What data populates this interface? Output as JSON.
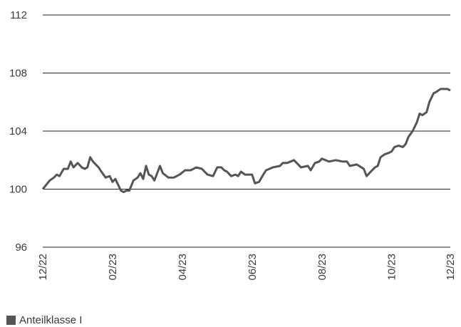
{
  "chart_data": {
    "type": "line",
    "title": "",
    "xlabel": "",
    "ylabel": "",
    "ylim": [
      96,
      112
    ],
    "yticks": [
      96,
      100,
      104,
      108,
      112
    ],
    "xticks": [
      "12/22",
      "02/23",
      "04/23",
      "06/23",
      "08/23",
      "10/23",
      "12/23"
    ],
    "grid": "horizontal",
    "legend_placement": "bottom-left",
    "series": [
      {
        "name": "Anteilklasse I",
        "color": "#555555",
        "points": [
          [
            0,
            100.0
          ],
          [
            0.25,
            100.6
          ],
          [
            0.4,
            100.8
          ],
          [
            0.5,
            101.0
          ],
          [
            0.6,
            100.9
          ],
          [
            0.75,
            101.4
          ],
          [
            0.9,
            101.4
          ],
          [
            1.0,
            101.9
          ],
          [
            1.1,
            101.5
          ],
          [
            1.25,
            101.8
          ],
          [
            1.4,
            101.5
          ],
          [
            1.5,
            101.4
          ],
          [
            1.6,
            101.5
          ],
          [
            1.7,
            102.2
          ],
          [
            1.8,
            101.9
          ],
          [
            1.9,
            101.7
          ],
          [
            2.0,
            101.5
          ],
          [
            2.1,
            101.2
          ],
          [
            2.25,
            100.8
          ],
          [
            2.4,
            100.9
          ],
          [
            2.5,
            100.5
          ],
          [
            2.6,
            100.7
          ],
          [
            2.7,
            100.3
          ],
          [
            2.8,
            99.9
          ],
          [
            2.9,
            99.8
          ],
          [
            3.0,
            99.9
          ],
          [
            3.1,
            99.9
          ],
          [
            3.25,
            100.6
          ],
          [
            3.4,
            100.8
          ],
          [
            3.5,
            101.1
          ],
          [
            3.6,
            100.7
          ],
          [
            3.7,
            101.6
          ],
          [
            3.8,
            101.0
          ],
          [
            3.9,
            100.9
          ],
          [
            4.0,
            100.6
          ],
          [
            4.1,
            101.1
          ],
          [
            4.2,
            101.6
          ],
          [
            4.3,
            101.1
          ],
          [
            4.5,
            100.8
          ],
          [
            4.7,
            100.8
          ],
          [
            4.9,
            101.0
          ],
          [
            5.1,
            101.3
          ],
          [
            5.3,
            101.3
          ],
          [
            5.5,
            101.5
          ],
          [
            5.7,
            101.4
          ],
          [
            5.9,
            101.0
          ],
          [
            6.1,
            100.9
          ],
          [
            6.25,
            101.5
          ],
          [
            6.4,
            101.5
          ],
          [
            6.5,
            101.3
          ],
          [
            6.6,
            101.2
          ],
          [
            6.75,
            100.9
          ],
          [
            6.9,
            101.0
          ],
          [
            7.0,
            100.9
          ],
          [
            7.1,
            101.2
          ],
          [
            7.25,
            101.0
          ],
          [
            7.5,
            101.0
          ],
          [
            7.6,
            100.4
          ],
          [
            7.75,
            100.5
          ],
          [
            7.9,
            101.0
          ],
          [
            8.0,
            101.3
          ],
          [
            8.25,
            101.5
          ],
          [
            8.5,
            101.6
          ],
          [
            8.6,
            101.8
          ],
          [
            8.75,
            101.8
          ],
          [
            9.0,
            102.0
          ],
          [
            9.25,
            101.5
          ],
          [
            9.5,
            101.6
          ],
          [
            9.6,
            101.3
          ],
          [
            9.75,
            101.8
          ],
          [
            9.9,
            101.9
          ],
          [
            10.0,
            102.1
          ],
          [
            10.25,
            101.9
          ],
          [
            10.5,
            102.0
          ],
          [
            10.75,
            101.9
          ],
          [
            10.9,
            101.9
          ],
          [
            11.0,
            101.6
          ],
          [
            11.25,
            101.7
          ],
          [
            11.5,
            101.4
          ],
          [
            11.6,
            100.9
          ],
          [
            11.75,
            101.2
          ],
          [
            11.9,
            101.5
          ],
          [
            12.0,
            101.6
          ],
          [
            12.1,
            102.2
          ],
          [
            12.25,
            102.4
          ],
          [
            12.4,
            102.5
          ],
          [
            12.5,
            102.6
          ],
          [
            12.6,
            102.9
          ],
          [
            12.75,
            103.0
          ],
          [
            12.9,
            102.9
          ],
          [
            13.0,
            103.1
          ],
          [
            13.1,
            103.6
          ],
          [
            13.25,
            104.0
          ],
          [
            13.4,
            104.6
          ],
          [
            13.5,
            105.2
          ],
          [
            13.6,
            105.1
          ],
          [
            13.75,
            105.3
          ],
          [
            13.85,
            106.0
          ],
          [
            14.0,
            106.6
          ],
          [
            14.1,
            106.7
          ],
          [
            14.25,
            106.9
          ],
          [
            14.4,
            106.9
          ],
          [
            14.5,
            106.9
          ],
          [
            14.6,
            106.8
          ]
        ]
      }
    ]
  }
}
